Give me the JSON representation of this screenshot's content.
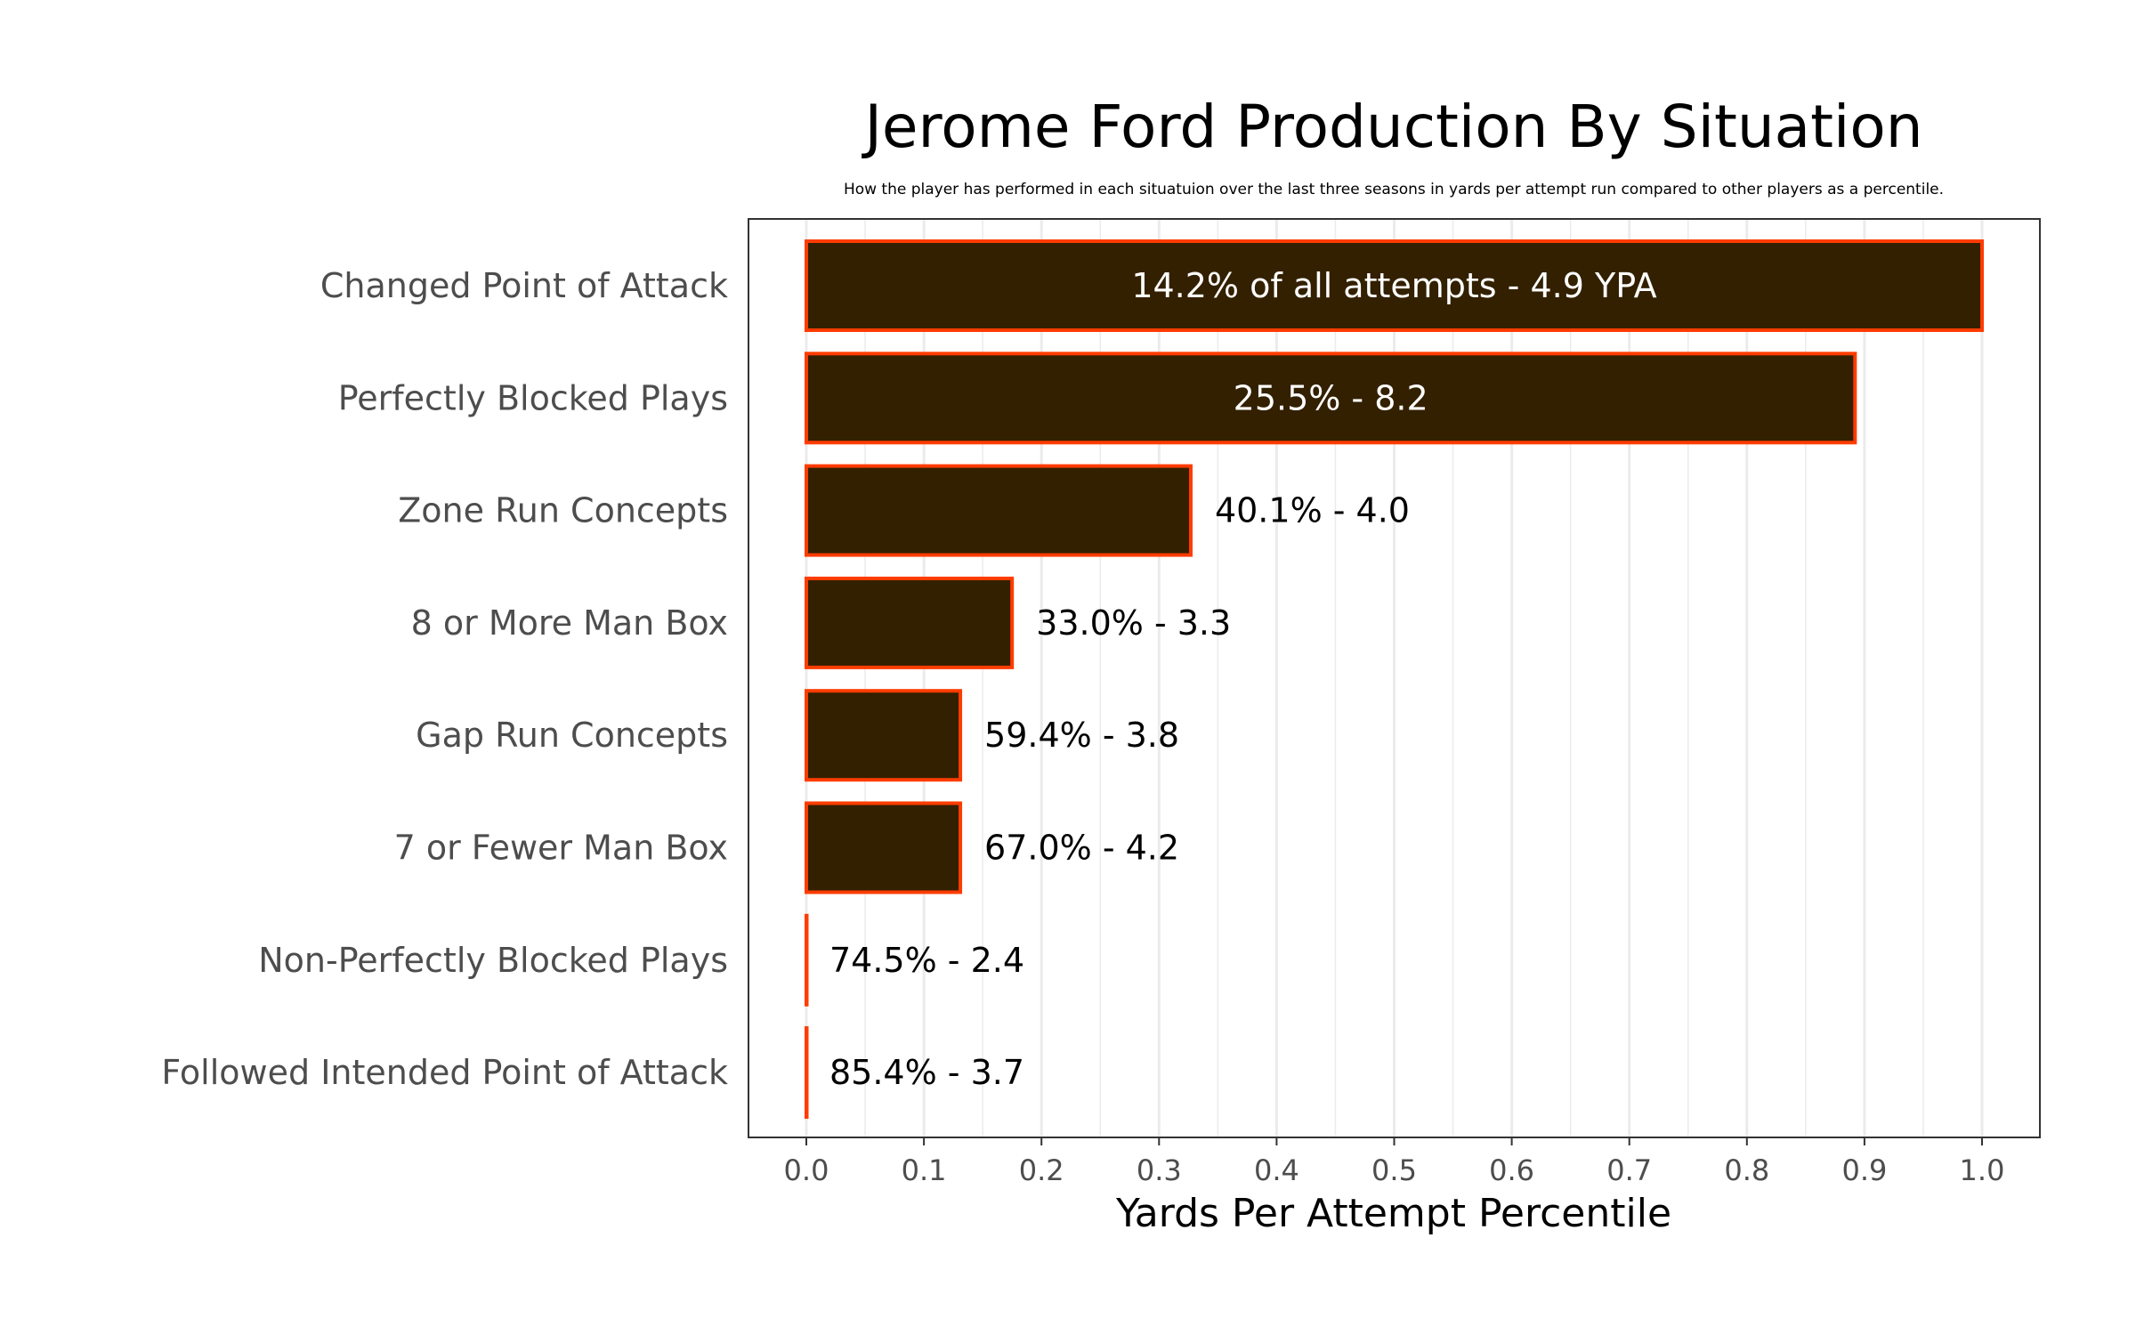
{
  "chart_data": {
    "type": "bar",
    "orientation": "horizontal",
    "title": "Jerome Ford Production By Situation",
    "subtitle": "How the player has performed in each situatuion over the last three seasons in yards per attempt run compared to other players as a percentile.",
    "xlabel": "Yards Per Attempt Percentile",
    "ylabel": "",
    "xlim": [
      0,
      1.0
    ],
    "xticks": [
      "0.0",
      "0.1",
      "0.2",
      "0.3",
      "0.4",
      "0.5",
      "0.6",
      "0.7",
      "0.8",
      "0.9",
      "1.0"
    ],
    "grid": true,
    "categories": [
      "Changed Point of Attack",
      "Perfectly Blocked Plays",
      "Zone Run Concepts",
      "8 or More Man Box",
      "Gap Run Concepts",
      "7 or Fewer Man Box",
      "Non-Perfectly Blocked Plays",
      "Followed Intended Point of Attack"
    ],
    "values": [
      1.0,
      0.892,
      0.327,
      0.175,
      0.131,
      0.131,
      0.0,
      0.0
    ],
    "labels": [
      "14.2% of all attempts - 4.9 YPA",
      "25.5% - 8.2",
      "40.1% - 4.0",
      "33.0% - 3.3",
      "59.4% - 3.8",
      "67.0% - 4.2",
      "74.5% - 2.4",
      "85.4% - 3.7"
    ],
    "colors": {
      "fill": "#332000",
      "outline": "#FF3C00",
      "label_inside": "#FFFFFF",
      "label_outside": "#000000"
    }
  }
}
